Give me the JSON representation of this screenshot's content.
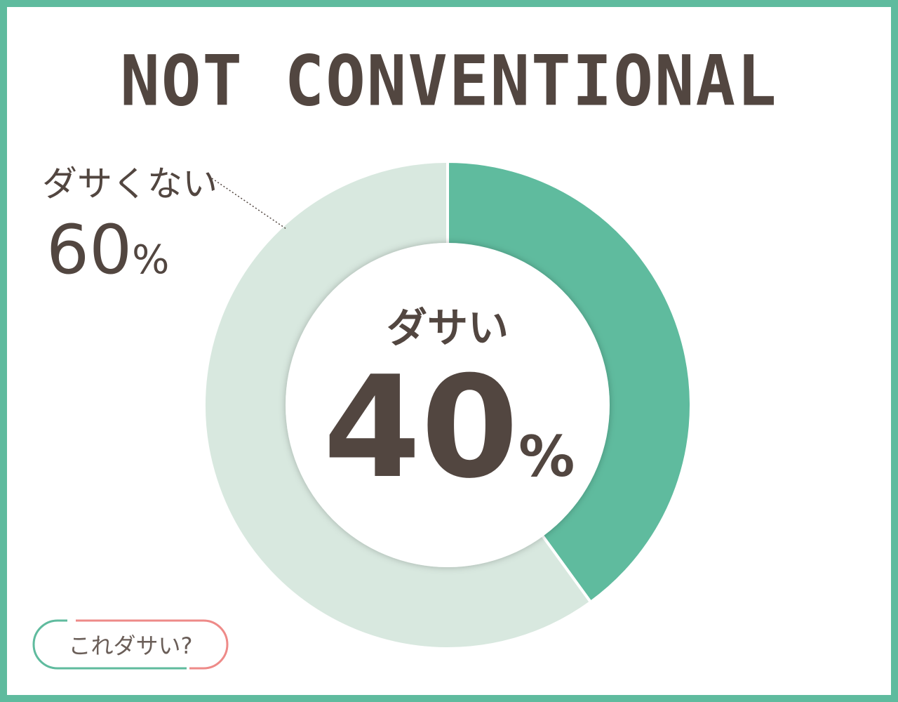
{
  "title": "NOT CONVENTIONAL",
  "badge": "これダサい?",
  "colors": {
    "border": "#5fbb9e",
    "primary": "#5fbb9e",
    "secondary": "#d8e8df",
    "text": "#524640",
    "badge_pink": "#ee8a88"
  },
  "chart_data": {
    "type": "pie",
    "donut": true,
    "categories": [
      "ダサい",
      "ダサくない"
    ],
    "values": [
      40,
      60
    ],
    "labels": [
      {
        "name": "ダサい",
        "value": "40",
        "unit": "%"
      },
      {
        "name": "ダサくない",
        "value": "60",
        "unit": "%"
      }
    ]
  }
}
